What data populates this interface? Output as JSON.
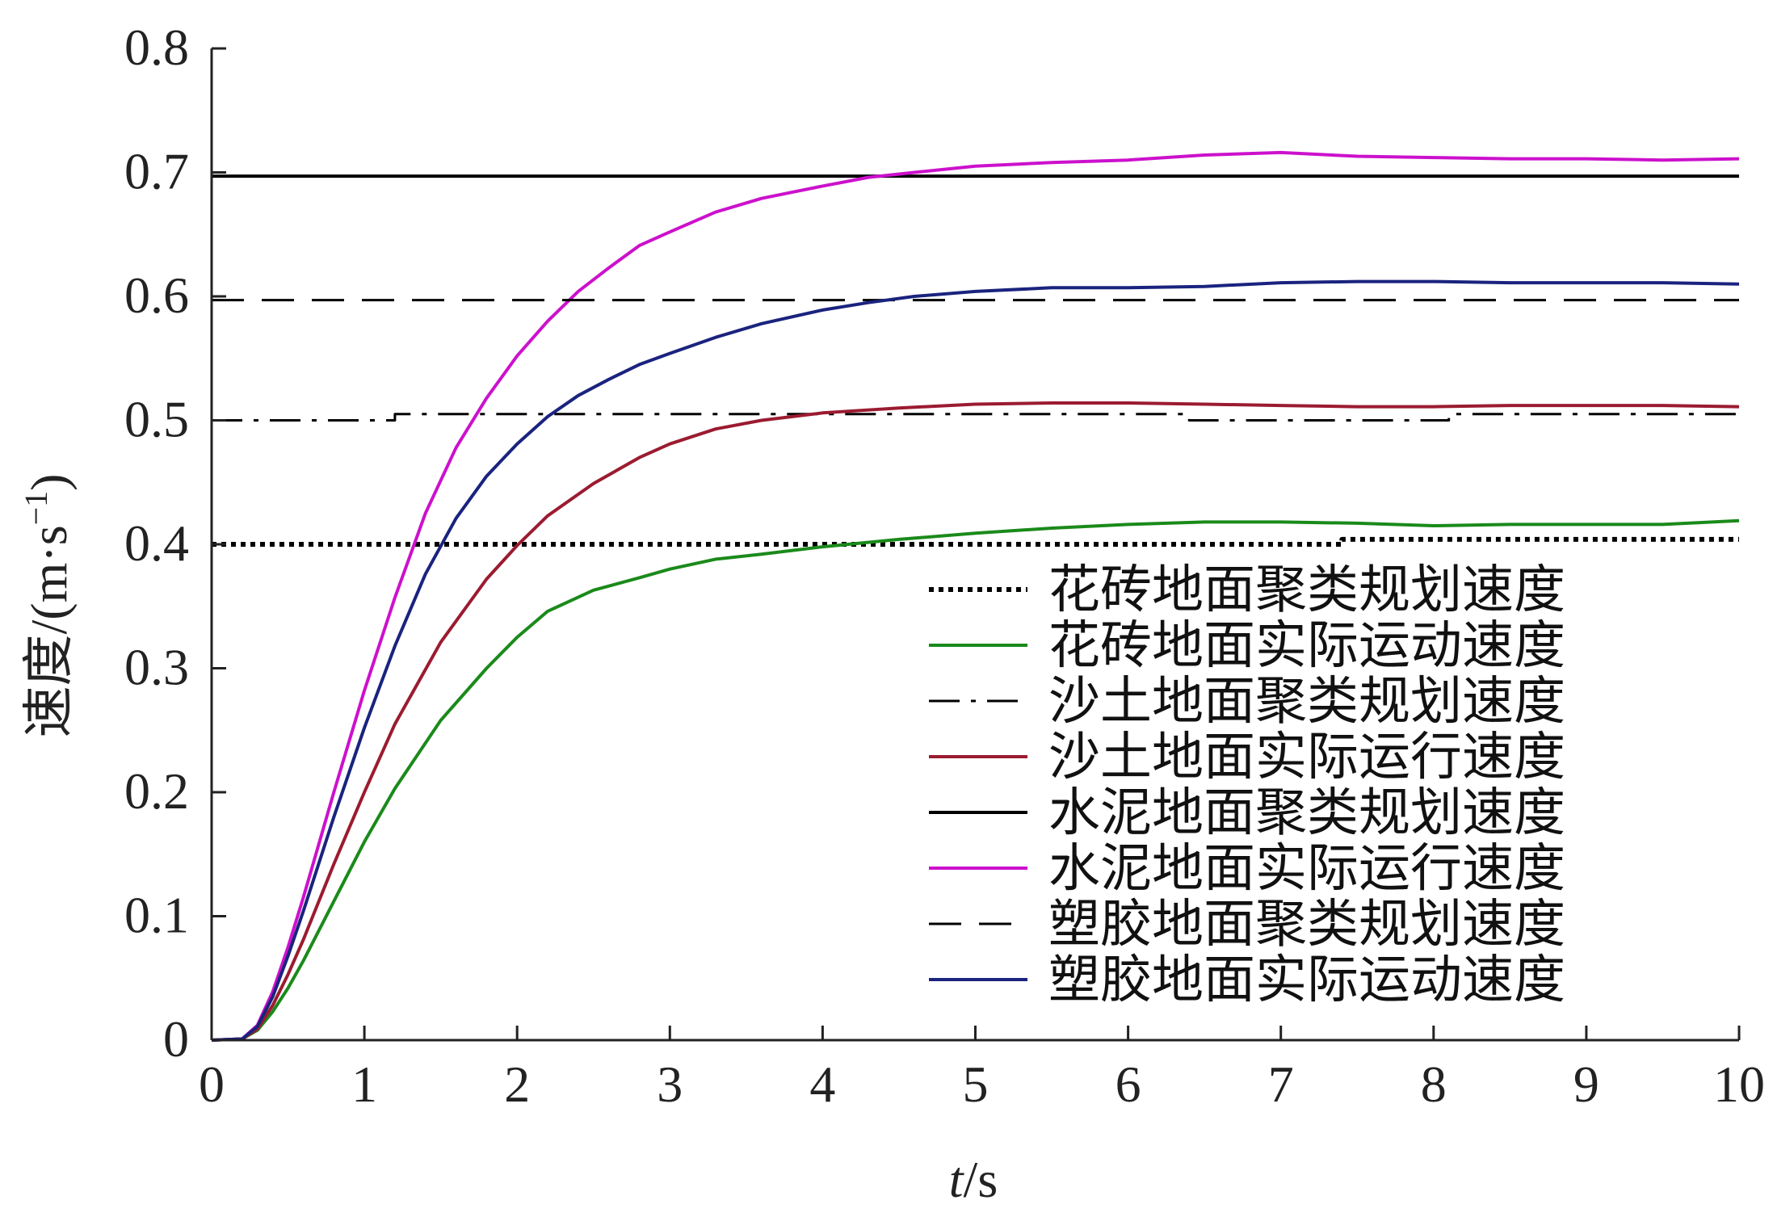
{
  "chart_data": {
    "type": "line",
    "xlabel": {
      "italic": "t",
      "unit": "/s"
    },
    "ylabel": {
      "text": "速度/(m·s",
      "sup": "−1",
      "close": ")"
    },
    "xlim": [
      0,
      10
    ],
    "ylim": [
      0,
      0.8
    ],
    "x_ticks": [
      0,
      1,
      2,
      3,
      4,
      5,
      6,
      7,
      8,
      9,
      10
    ],
    "x_tick_labels": [
      "0",
      "1",
      "2",
      "3",
      "4",
      "5",
      "6",
      "7",
      "8",
      "9",
      "10"
    ],
    "y_ticks": [
      0,
      0.1,
      0.2,
      0.3,
      0.4,
      0.5,
      0.6,
      0.7,
      0.8
    ],
    "y_tick_labels": [
      "0",
      "0.1",
      "0.2",
      "0.3",
      "0.4",
      "0.5",
      "0.6",
      "0.7",
      "0.8"
    ],
    "grid": false,
    "legend_position": "bottom-right",
    "series": [
      {
        "name": "花砖地面聚类规划速度",
        "color": "#000000",
        "style": "dotted",
        "x": [
          0,
          7.4,
          7.4,
          10
        ],
        "y": [
          0.4,
          0.4,
          0.404,
          0.404
        ]
      },
      {
        "name": "花砖地面实际运动速度",
        "color": "#1a8a1a",
        "style": "solid",
        "x": [
          0,
          0.2,
          0.3,
          0.4,
          0.5,
          0.6,
          0.8,
          1.0,
          1.2,
          1.5,
          1.8,
          2.0,
          2.2,
          2.5,
          2.8,
          3.0,
          3.3,
          3.6,
          4.0,
          4.5,
          5.0,
          5.5,
          6.0,
          6.5,
          7.0,
          7.5,
          8.0,
          8.5,
          9.0,
          9.5,
          10.0
        ],
        "y": [
          0,
          0.001,
          0.008,
          0.023,
          0.042,
          0.064,
          0.112,
          0.16,
          0.203,
          0.258,
          0.3,
          0.325,
          0.346,
          0.363,
          0.373,
          0.38,
          0.388,
          0.392,
          0.398,
          0.404,
          0.409,
          0.413,
          0.416,
          0.418,
          0.418,
          0.417,
          0.415,
          0.416,
          0.416,
          0.416,
          0.419
        ]
      },
      {
        "name": "沙土地面聚类规划速度",
        "color": "#000000",
        "style": "dashdot",
        "x": [
          0,
          1.2,
          1.2,
          6.4,
          6.4,
          8.1,
          8.1,
          10
        ],
        "y": [
          0.5,
          0.5,
          0.505,
          0.505,
          0.5,
          0.5,
          0.505,
          0.505
        ]
      },
      {
        "name": "沙土地面实际运行速度",
        "color": "#9b1b30",
        "style": "solid",
        "x": [
          0,
          0.2,
          0.3,
          0.4,
          0.5,
          0.6,
          0.8,
          1.0,
          1.2,
          1.5,
          1.8,
          2.0,
          2.2,
          2.5,
          2.8,
          3.0,
          3.3,
          3.6,
          4.0,
          4.5,
          5.0,
          5.5,
          6.0,
          6.5,
          7.0,
          7.5,
          8.0,
          8.5,
          9.0,
          9.5,
          10.0
        ],
        "y": [
          0,
          0.001,
          0.009,
          0.028,
          0.053,
          0.081,
          0.142,
          0.2,
          0.255,
          0.321,
          0.372,
          0.399,
          0.423,
          0.449,
          0.47,
          0.481,
          0.493,
          0.5,
          0.506,
          0.51,
          0.513,
          0.514,
          0.514,
          0.513,
          0.512,
          0.511,
          0.511,
          0.512,
          0.512,
          0.512,
          0.511
        ]
      },
      {
        "name": "水泥地面聚类规划速度",
        "color": "#000000",
        "style": "solid",
        "x": [
          0,
          10
        ],
        "y": [
          0.697,
          0.697
        ]
      },
      {
        "name": "水泥地面实际运行速度",
        "color": "#cc11cc",
        "style": "solid",
        "x": [
          0,
          0.2,
          0.3,
          0.4,
          0.5,
          0.6,
          0.8,
          1.0,
          1.2,
          1.4,
          1.6,
          1.8,
          2.0,
          2.2,
          2.4,
          2.6,
          2.8,
          3.0,
          3.3,
          3.6,
          4.0,
          4.3,
          4.6,
          5.0,
          5.5,
          6.0,
          6.5,
          7.0,
          7.5,
          8.0,
          8.5,
          9.0,
          9.5,
          10.0
        ],
        "y": [
          0,
          0.001,
          0.012,
          0.039,
          0.075,
          0.115,
          0.2,
          0.282,
          0.357,
          0.425,
          0.478,
          0.518,
          0.552,
          0.58,
          0.604,
          0.623,
          0.641,
          0.652,
          0.668,
          0.679,
          0.689,
          0.696,
          0.7,
          0.705,
          0.708,
          0.71,
          0.714,
          0.716,
          0.713,
          0.712,
          0.711,
          0.711,
          0.71,
          0.711
        ]
      },
      {
        "name": "塑胶地面聚类规划速度",
        "color": "#000000",
        "style": "dashed",
        "x": [
          0,
          10
        ],
        "y": [
          0.597,
          0.597
        ]
      },
      {
        "name": "塑胶地面实际运动速度",
        "color": "#1a237e",
        "style": "solid",
        "x": [
          0,
          0.2,
          0.3,
          0.4,
          0.5,
          0.6,
          0.8,
          1.0,
          1.2,
          1.4,
          1.6,
          1.8,
          2.0,
          2.2,
          2.4,
          2.6,
          2.8,
          3.0,
          3.3,
          3.6,
          4.0,
          4.3,
          4.6,
          5.0,
          5.5,
          6.0,
          6.5,
          7.0,
          7.5,
          8.0,
          8.5,
          9.0,
          9.5,
          10.0
        ],
        "y": [
          0,
          0.001,
          0.011,
          0.035,
          0.068,
          0.104,
          0.18,
          0.252,
          0.318,
          0.376,
          0.421,
          0.455,
          0.481,
          0.503,
          0.52,
          0.533,
          0.545,
          0.554,
          0.567,
          0.578,
          0.589,
          0.595,
          0.6,
          0.604,
          0.607,
          0.607,
          0.608,
          0.611,
          0.612,
          0.612,
          0.611,
          0.611,
          0.611,
          0.61
        ]
      }
    ]
  }
}
